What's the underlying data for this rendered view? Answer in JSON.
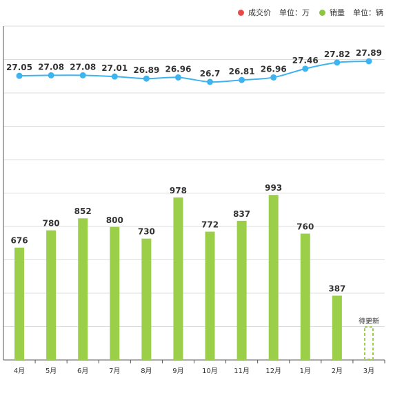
{
  "legend": [
    {
      "label": "成交价",
      "unit": "单位：万",
      "color": "#e84a4a"
    },
    {
      "label": "销量",
      "unit": "单位：辆",
      "color": "#8cc63f"
    }
  ],
  "chart_data": {
    "type": "bar+line",
    "categories": [
      "4月",
      "5月",
      "6月",
      "7月",
      "8月",
      "9月",
      "10月",
      "11月",
      "12月",
      "1月",
      "2月",
      "3月"
    ],
    "series": [
      {
        "name": "销量",
        "type": "bar",
        "unit": "辆",
        "color": "#9bcf4a",
        "values": [
          676,
          780,
          852,
          800,
          730,
          978,
          772,
          837,
          993,
          760,
          387,
          null
        ]
      },
      {
        "name": "成交价",
        "type": "line",
        "unit": "万",
        "color": "#3db3ef",
        "values": [
          27.05,
          27.08,
          27.08,
          27.01,
          26.89,
          26.96,
          26.7,
          26.81,
          26.96,
          27.46,
          27.82,
          27.89
        ]
      }
    ],
    "pending_label": "待更新",
    "pending_index": 11,
    "grid": true
  }
}
